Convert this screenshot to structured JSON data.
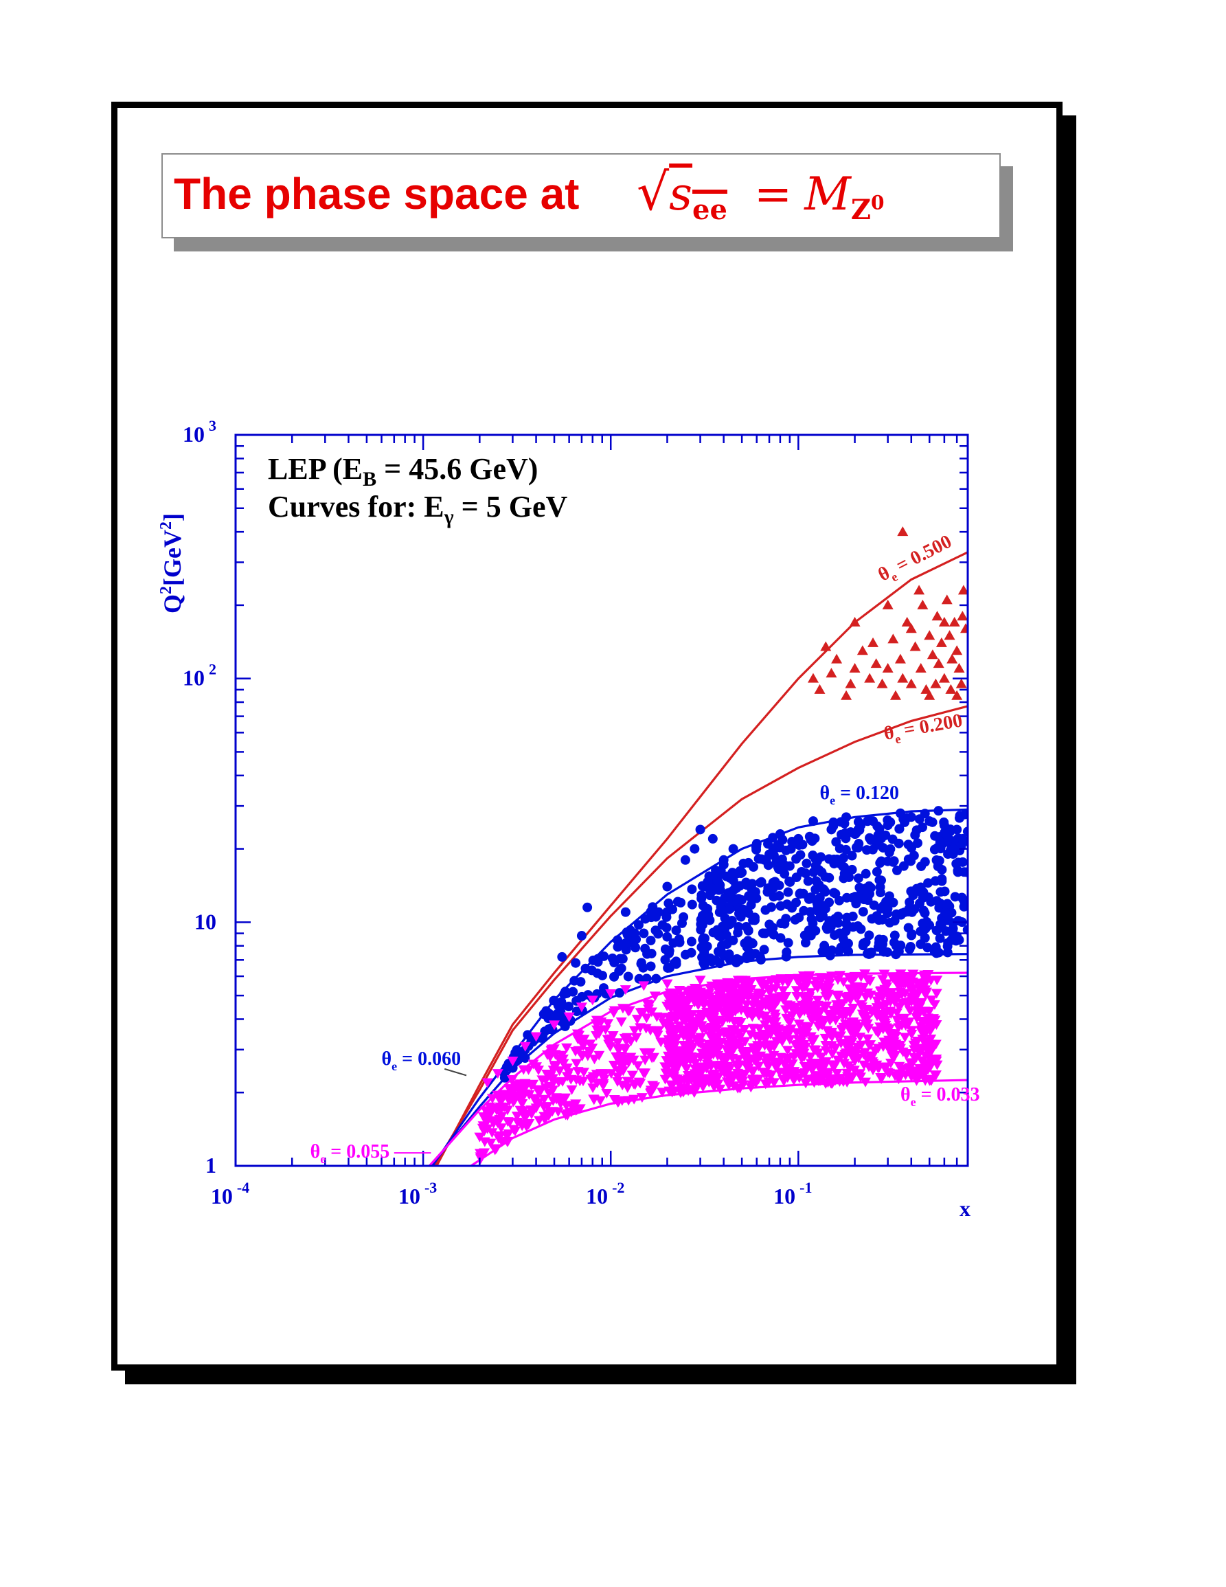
{
  "slide": {
    "title_text": "The phase space at",
    "title_math": {
      "radicand": "s",
      "radicand_sub": "ee",
      "equals": "=",
      "rhs": "M",
      "rhs_sub": "Z",
      "rhs_sup": "0"
    }
  },
  "colors": {
    "title": "#e60000",
    "axes": "#0000cc",
    "red": "#d42020",
    "blue": "#0010dd",
    "magenta": "#ff00ff",
    "annotation": "#000000"
  },
  "chart_data": {
    "type": "scatter",
    "x_scale": "log",
    "y_scale": "log",
    "xlim": [
      0.0001,
      0.8
    ],
    "ylim": [
      1,
      1000
    ],
    "xlabel": "x",
    "ylabel": "Q²[GeV²]",
    "x_ticks": [
      {
        "value": 0.0001,
        "base": "10",
        "exp": "-4"
      },
      {
        "value": 0.001,
        "base": "10",
        "exp": "-3"
      },
      {
        "value": 0.01,
        "base": "10",
        "exp": "-2"
      },
      {
        "value": 0.1,
        "base": "10",
        "exp": "-1"
      }
    ],
    "y_ticks": [
      {
        "value": 1,
        "base": "1",
        "exp": ""
      },
      {
        "value": 10,
        "base": "10",
        "exp": ""
      },
      {
        "value": 100,
        "base": "10",
        "exp": "2"
      },
      {
        "value": 1000,
        "base": "10",
        "exp": "3"
      }
    ],
    "annotations": {
      "line1_pre": "LEP (E",
      "line1_sub": "B",
      "line1_post": " = 45.6 GeV)",
      "line2_pre": "Curves for: E",
      "line2_sub": "γ",
      "line2_post": " = 5 GeV"
    },
    "curves": [
      {
        "theta_sym": "θ",
        "theta_sub": "e",
        "value_text": " = 0.500",
        "color": "red",
        "label_x": 0.28,
        "label_y": 250,
        "label_angle": -27,
        "points": [
          [
            0.00118,
            1
          ],
          [
            0.002,
            2.15
          ],
          [
            0.003,
            3.8
          ],
          [
            0.005,
            6.2
          ],
          [
            0.01,
            11.7
          ],
          [
            0.02,
            22
          ],
          [
            0.05,
            54
          ],
          [
            0.1,
            100
          ],
          [
            0.2,
            170
          ],
          [
            0.4,
            255
          ],
          [
            0.8,
            330
          ]
        ]
      },
      {
        "theta_sym": "θ",
        "theta_sub": "e",
        "value_text": " = 0.200",
        "color": "red",
        "label_x": 0.29,
        "label_y": 56,
        "label_angle": -10,
        "points": [
          [
            0.00115,
            1
          ],
          [
            0.002,
            2.05
          ],
          [
            0.003,
            3.6
          ],
          [
            0.005,
            5.8
          ],
          [
            0.01,
            10.6
          ],
          [
            0.02,
            18.3
          ],
          [
            0.05,
            32
          ],
          [
            0.1,
            43
          ],
          [
            0.2,
            55
          ],
          [
            0.4,
            67
          ],
          [
            0.8,
            77
          ]
        ]
      },
      {
        "theta_sym": "θ",
        "theta_sub": "e",
        "value_text": " = 0.120",
        "color": "blue",
        "label_x": 0.13,
        "label_y": 32,
        "label_angle": 0,
        "points": [
          [
            0.00112,
            1
          ],
          [
            0.002,
            1.9
          ],
          [
            0.005,
            4.8
          ],
          [
            0.01,
            8.3
          ],
          [
            0.02,
            13
          ],
          [
            0.05,
            20
          ],
          [
            0.1,
            24.5
          ],
          [
            0.2,
            27
          ],
          [
            0.4,
            28.5
          ],
          [
            0.8,
            29
          ]
        ]
      },
      {
        "theta_sym": "θ",
        "theta_sub": "e",
        "value_text": " = 0.060",
        "color": "blue",
        "label_x": 0.0006,
        "label_y": 2.6,
        "label_angle": 0,
        "label_color": "blue",
        "points": [
          [
            0.0011,
            1
          ],
          [
            0.002,
            1.75
          ],
          [
            0.003,
            2.5
          ],
          [
            0.005,
            3.5
          ],
          [
            0.01,
            4.9
          ],
          [
            0.02,
            6
          ],
          [
            0.05,
            6.9
          ],
          [
            0.1,
            7.2
          ],
          [
            0.2,
            7.35
          ],
          [
            0.8,
            7.4
          ]
        ]
      },
      {
        "theta_sym": "θ",
        "theta_sub": "e",
        "value_text": " = 0.055",
        "color": "magenta",
        "label_x": 0.00025,
        "label_y": 1.08,
        "label_angle": 0,
        "points": [
          [
            0.00108,
            1
          ],
          [
            0.002,
            1.7
          ],
          [
            0.003,
            2.3
          ],
          [
            0.005,
            3.15
          ],
          [
            0.01,
            4.3
          ],
          [
            0.02,
            5.2
          ],
          [
            0.05,
            5.85
          ],
          [
            0.1,
            6.05
          ],
          [
            0.2,
            6.15
          ],
          [
            0.8,
            6.2
          ]
        ]
      },
      {
        "theta_sym": "θ",
        "theta_sub": "e",
        "value_text": " = 0.033",
        "color": "magenta",
        "label_x": 0.35,
        "label_y": 1.85,
        "label_angle": 0,
        "points": [
          [
            0.0018,
            1
          ],
          [
            0.003,
            1.3
          ],
          [
            0.005,
            1.55
          ],
          [
            0.01,
            1.8
          ],
          [
            0.02,
            1.95
          ],
          [
            0.05,
            2.08
          ],
          [
            0.1,
            2.15
          ],
          [
            0.2,
            2.2
          ],
          [
            0.8,
            2.25
          ]
        ]
      }
    ],
    "series": [
      {
        "marker": "triangle-up",
        "color": "red",
        "points": [
          [
            0.12,
            100
          ],
          [
            0.16,
            120
          ],
          [
            0.2,
            110
          ],
          [
            0.25,
            140
          ],
          [
            0.3,
            200
          ],
          [
            0.35,
            120
          ],
          [
            0.4,
            95
          ],
          [
            0.45,
            110
          ],
          [
            0.5,
            150
          ],
          [
            0.55,
            180
          ],
          [
            0.6,
            100
          ],
          [
            0.65,
            90
          ],
          [
            0.7,
            130
          ],
          [
            0.75,
            180
          ],
          [
            0.13,
            90
          ],
          [
            0.18,
            85
          ],
          [
            0.22,
            130
          ],
          [
            0.28,
            95
          ],
          [
            0.33,
            85
          ],
          [
            0.38,
            170
          ],
          [
            0.42,
            135
          ],
          [
            0.48,
            90
          ],
          [
            0.52,
            125
          ],
          [
            0.58,
            140
          ],
          [
            0.62,
            210
          ],
          [
            0.68,
            170
          ],
          [
            0.72,
            110
          ],
          [
            0.78,
            160
          ],
          [
            0.15,
            105
          ],
          [
            0.24,
            100
          ],
          [
            0.32,
            145
          ],
          [
            0.36,
            100
          ],
          [
            0.46,
            200
          ],
          [
            0.54,
            95
          ],
          [
            0.64,
            150
          ],
          [
            0.7,
            85
          ],
          [
            0.76,
            230
          ],
          [
            0.14,
            135
          ],
          [
            0.2,
            170
          ],
          [
            0.26,
            115
          ],
          [
            0.36,
            400
          ],
          [
            0.44,
            230
          ],
          [
            0.56,
            115
          ],
          [
            0.66,
            120
          ],
          [
            0.74,
            95
          ],
          [
            0.19,
            95
          ],
          [
            0.3,
            110
          ],
          [
            0.4,
            160
          ],
          [
            0.5,
            85
          ],
          [
            0.6,
            170
          ]
        ]
      },
      {
        "marker": "circle",
        "color": "blue",
        "note": "dense band between theta_e = 0.060 and 0.120 curves",
        "points": [
          [
            0.0055,
            7.2
          ],
          [
            0.0065,
            6.8
          ],
          [
            0.007,
            8.8
          ],
          [
            0.0075,
            11.5
          ],
          [
            0.012,
            11
          ],
          [
            0.012,
            8.2
          ],
          [
            0.015,
            9
          ],
          [
            0.018,
            11
          ],
          [
            0.02,
            14
          ],
          [
            0.025,
            18
          ],
          [
            0.028,
            20
          ],
          [
            0.03,
            24
          ],
          [
            0.035,
            22
          ],
          [
            0.04,
            18
          ],
          [
            0.045,
            20
          ],
          [
            0.05,
            16
          ],
          [
            0.06,
            21
          ],
          [
            0.07,
            19
          ],
          [
            0.08,
            23
          ],
          [
            0.09,
            17
          ],
          [
            0.1,
            22
          ],
          [
            0.12,
            26
          ],
          [
            0.15,
            24
          ],
          [
            0.18,
            27
          ],
          [
            0.2,
            23
          ],
          [
            0.25,
            26
          ],
          [
            0.3,
            25
          ],
          [
            0.35,
            28
          ],
          [
            0.4,
            27
          ],
          [
            0.5,
            26
          ],
          [
            0.6,
            25
          ],
          [
            0.7,
            24
          ],
          [
            0.75,
            22
          ]
        ]
      },
      {
        "marker": "triangle-down",
        "color": "magenta",
        "note": "dense band between theta_e = 0.033 and 0.055 curves",
        "points": [
          [
            0.0022,
            2.2
          ],
          [
            0.0025,
            2.4
          ],
          [
            0.003,
            2.7
          ],
          [
            0.0035,
            3.1
          ],
          [
            0.004,
            3.4
          ],
          [
            0.005,
            3.8
          ],
          [
            0.006,
            4.1
          ],
          [
            0.007,
            4.5
          ],
          [
            0.008,
            4.8
          ],
          [
            0.01,
            5.1
          ],
          [
            0.012,
            5.3
          ],
          [
            0.015,
            5.5
          ],
          [
            0.02,
            5.6
          ],
          [
            0.03,
            5.8
          ],
          [
            0.05,
            5.8
          ],
          [
            0.1,
            5.9
          ],
          [
            0.2,
            6
          ],
          [
            0.4,
            5.9
          ]
        ]
      }
    ],
    "point_clouds": [
      {
        "marker": "circle",
        "color": "blue",
        "count": 720,
        "bands": [
          {
            "x": [
              0.0025,
              0.05
            ],
            "y_curves": [
              3,
              2
            ],
            "weight": 0.25
          },
          {
            "x": [
              0.03,
              0.8
            ],
            "y_curves": [
              3,
              2
            ],
            "weight": 0.75
          }
        ]
      },
      {
        "marker": "triangle-down",
        "color": "magenta",
        "count": 1450,
        "bands": [
          {
            "x": [
              0.002,
              0.05
            ],
            "y_curves": [
              5,
              4
            ],
            "weight": 0.3
          },
          {
            "x": [
              0.02,
              0.55
            ],
            "y_curves": [
              5,
              4
            ],
            "weight": 0.7
          }
        ]
      }
    ]
  }
}
